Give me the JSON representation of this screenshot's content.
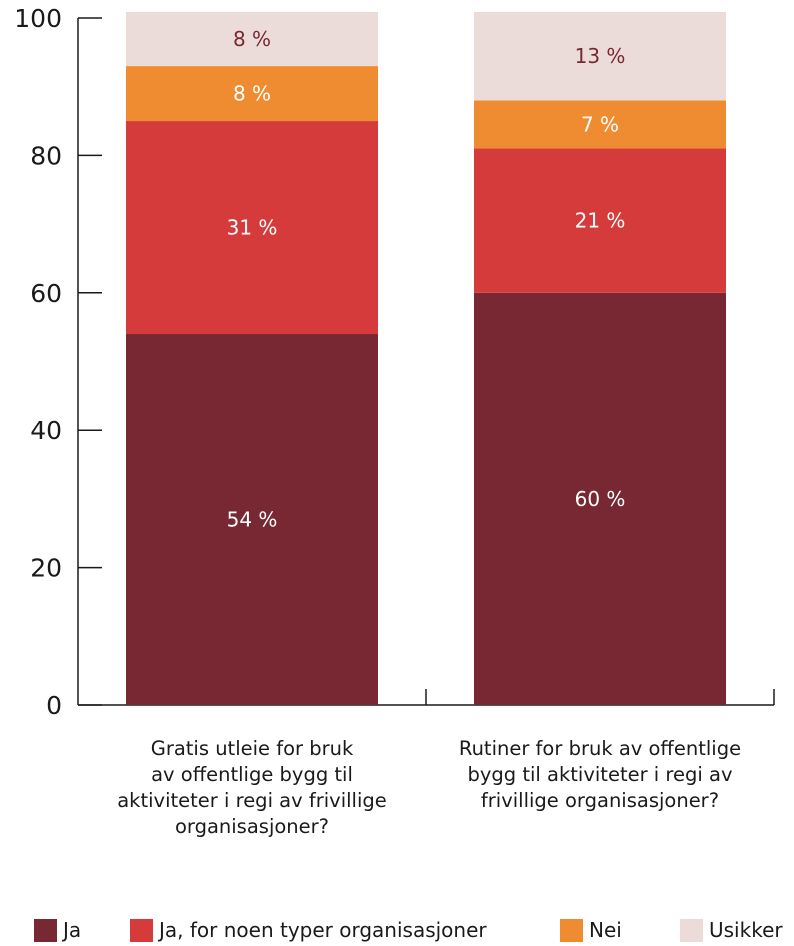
{
  "chart_data": {
    "type": "bar",
    "stacked": true,
    "categories": [
      [
        "Gratis utleie for bruk",
        "av offentlige bygg til",
        "aktiviteter i regi av frivillige",
        "organisasjoner?"
      ],
      [
        "Rutiner for bruk av offentlige",
        "bygg til aktiviteter i regi av",
        "frivillige organisasjoner?"
      ]
    ],
    "ylim": [
      0,
      100
    ],
    "yticks": [
      0,
      20,
      40,
      60,
      80,
      100
    ],
    "grid": false,
    "legend_position": "bottom",
    "series": [
      {
        "name": "Ja",
        "color": "#772832",
        "label_color": "#ffffff",
        "values": [
          54,
          60
        ],
        "labels": [
          "54 %",
          "60 %"
        ]
      },
      {
        "name": "Ja, for noen typer organisasjoner",
        "color": "#d63b3c",
        "label_color": "#ffffff",
        "values": [
          31,
          21
        ],
        "labels": [
          "31 %",
          "21 %"
        ]
      },
      {
        "name": "Nei",
        "color": "#ef8b30",
        "label_color": "#ffffff",
        "values": [
          8,
          7
        ],
        "labels": [
          "8 %",
          "7 %"
        ]
      },
      {
        "name": "Usikker",
        "color": "#ecdcd9",
        "label_color": "#772832",
        "values": [
          8,
          13
        ],
        "labels": [
          "8 %",
          "13 %"
        ]
      }
    ]
  }
}
